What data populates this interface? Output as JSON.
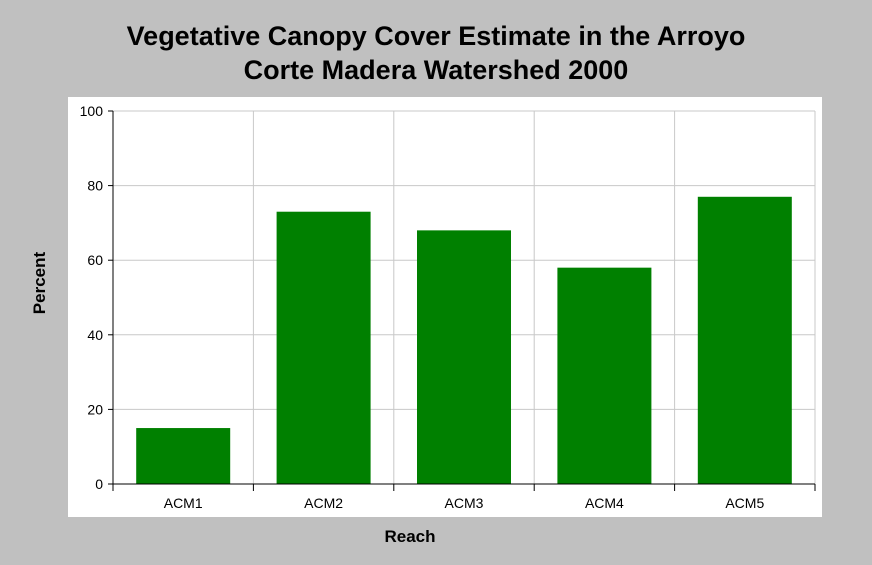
{
  "chart_data": {
    "type": "bar",
    "title_lines": [
      "Vegetative Canopy Cover Estimate in the Arroyo",
      "Corte Madera Watershed 2000"
    ],
    "xlabel": "Reach",
    "ylabel": "Percent",
    "categories": [
      "ACM1",
      "ACM2",
      "ACM3",
      "ACM4",
      "ACM5"
    ],
    "values": [
      15,
      73,
      68,
      58,
      77
    ],
    "ylim": [
      0,
      100
    ],
    "yticks": [
      "0",
      "20",
      "40",
      "60",
      "80",
      "100"
    ],
    "grid": true,
    "legend": "none",
    "bar_color": "#008000"
  }
}
